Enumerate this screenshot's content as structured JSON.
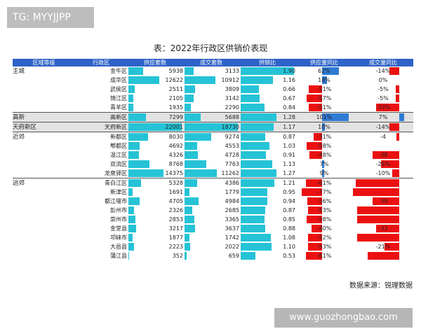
{
  "watermark_top": "TG: MYYJJPP",
  "watermark_bottom": "www.guozhongbao.com",
  "title": "表：2022年行政区供销价表现",
  "source": "数据来源：锐理数据",
  "headers": [
    "区域等级",
    "行政区",
    "供应套数",
    "成交套数",
    "供销比",
    "供应量同比",
    "成交量同比"
  ],
  "rows": [
    {
      "cat": "主城",
      "dist": "金牛区",
      "supply": 5938,
      "supply_text": "5938",
      "deal": 3133,
      "deal_text": "3133",
      "ratio": 1.9,
      "ratio_text": "1.90",
      "sy": 62,
      "sy_text": "62%",
      "dy": -14,
      "dy_text": "-14%"
    },
    {
      "cat": "",
      "dist": "成华区",
      "supply": 12622,
      "supply_text": "12622",
      "deal": 10912,
      "deal_text": "10912",
      "ratio": 1.16,
      "ratio_text": "1.16",
      "sy": 18,
      "sy_text": "18%",
      "dy": 0,
      "dy_text": "0%"
    },
    {
      "cat": "",
      "dist": "武侯区",
      "supply": 2511,
      "supply_text": "2511",
      "deal": 3809,
      "deal_text": "3809",
      "ratio": 0.66,
      "ratio_text": "0.66",
      "sy": -51,
      "sy_text": "-51%",
      "dy": -5,
      "dy_text": "-5%"
    },
    {
      "cat": "",
      "dist": "锦江区",
      "supply": 2105,
      "supply_text": "2105",
      "deal": 3142,
      "deal_text": "3142",
      "ratio": 0.67,
      "ratio_text": "0.67",
      "sy": -57,
      "sy_text": "-57%",
      "dy": -5,
      "dy_text": "-5%"
    },
    {
      "cat": "",
      "dist": "青羊区",
      "supply": 1935,
      "supply_text": "1935",
      "deal": 2290,
      "deal_text": "2290",
      "ratio": 0.84,
      "ratio_text": "0.84",
      "sy": -51,
      "sy_text": "-51%",
      "dy": -33,
      "dy_text": "-33%"
    },
    {
      "cat": "高新",
      "dist": "高新区",
      "supply": 7299,
      "supply_text": "7299",
      "deal": 5688,
      "deal_text": "5688",
      "ratio": 1.28,
      "ratio_text": "1.28",
      "sy": 101,
      "sy_text": "101%",
      "dy": 7,
      "dy_text": "7%",
      "group_start": true
    },
    {
      "cat": "天府新区",
      "dist": "天府新区",
      "supply": 22001,
      "supply_text": "22001",
      "deal": 18730,
      "deal_text": "18730",
      "ratio": 1.17,
      "ratio_text": "1.17",
      "sy": 10,
      "sy_text": "10%",
      "dy": -14,
      "dy_text": "-14%",
      "group_start": true
    },
    {
      "cat": "近郊",
      "dist": "新都区",
      "supply": 8030,
      "supply_text": "8030",
      "deal": 9274,
      "deal_text": "9274",
      "ratio": 0.87,
      "ratio_text": "0.87",
      "sy": -31,
      "sy_text": "-31%",
      "dy": -4,
      "dy_text": "-4",
      "group_start": true
    },
    {
      "cat": "",
      "dist": "郫都区",
      "supply": 4692,
      "supply_text": "4692",
      "deal": 4553,
      "deal_text": "4553",
      "ratio": 1.03,
      "ratio_text": "1.03",
      "sy": -58,
      "sy_text": "-58%",
      "dy": 0,
      "dy_text": ""
    },
    {
      "cat": "",
      "dist": "温江区",
      "supply": 4326,
      "supply_text": "4326",
      "deal": 4728,
      "deal_text": "4728",
      "ratio": 0.91,
      "ratio_text": "0.91",
      "sy": -48,
      "sy_text": "-48%",
      "dy": -38,
      "dy_text": "-38"
    },
    {
      "cat": "",
      "dist": "双流区",
      "supply": 8768,
      "supply_text": "8768",
      "deal": 7763,
      "deal_text": "7763",
      "ratio": 1.13,
      "ratio_text": "1.13",
      "sy": 7,
      "sy_text": "7%",
      "dy": -26,
      "dy_text": "-26%"
    },
    {
      "cat": "",
      "dist": "龙泉驿区",
      "supply": 14375,
      "supply_text": "14375",
      "deal": 11262,
      "deal_text": "11262",
      "ratio": 1.27,
      "ratio_text": "1.27",
      "sy": 9,
      "sy_text": "9%",
      "dy": -10,
      "dy_text": "-10%"
    },
    {
      "cat": "远郊",
      "dist": "青白江区",
      "supply": 5328,
      "supply_text": "5328",
      "deal": 4386,
      "deal_text": "4386",
      "ratio": 1.21,
      "ratio_text": "1.21",
      "sy": -61,
      "sy_text": "-61%",
      "dy": -62,
      "dy_text": "",
      "group_start": true
    },
    {
      "cat": "",
      "dist": "新津区",
      "supply": 1691,
      "supply_text": "1691",
      "deal": 1779,
      "deal_text": "1779",
      "ratio": 0.95,
      "ratio_text": "0.95",
      "sy": -77,
      "sy_text": "-77%",
      "dy": -70,
      "dy_text": ""
    },
    {
      "cat": "",
      "dist": "都江堰市",
      "supply": 4705,
      "supply_text": "4705",
      "deal": 4984,
      "deal_text": "4984",
      "ratio": 0.94,
      "ratio_text": "0.94",
      "sy": -56,
      "sy_text": "-56%",
      "dy": -38,
      "dy_text": "-38"
    },
    {
      "cat": "",
      "dist": "彭州市",
      "supply": 2326,
      "supply_text": "2326",
      "deal": 2685,
      "deal_text": "2685",
      "ratio": 0.87,
      "ratio_text": "0.87",
      "sy": -53,
      "sy_text": "-53%",
      "dy": -60,
      "dy_text": ""
    },
    {
      "cat": "",
      "dist": "崇州市",
      "supply": 2853,
      "supply_text": "2853",
      "deal": 3365,
      "deal_text": "3365",
      "ratio": 0.85,
      "ratio_text": "0.85",
      "sy": -58,
      "sy_text": "-58%",
      "dy": -60,
      "dy_text": ""
    },
    {
      "cat": "",
      "dist": "金堂县",
      "supply": 3217,
      "supply_text": "3217",
      "deal": 3637,
      "deal_text": "3637",
      "ratio": 0.88,
      "ratio_text": "0.88",
      "sy": -40,
      "sy_text": "-40%",
      "dy": -33,
      "dy_text": "-33"
    },
    {
      "cat": "",
      "dist": "邛崃市",
      "supply": 1877,
      "supply_text": "1877",
      "deal": 1742,
      "deal_text": "1742",
      "ratio": 1.08,
      "ratio_text": "1.08",
      "sy": -52,
      "sy_text": "-52%",
      "dy": -60,
      "dy_text": ""
    },
    {
      "cat": "",
      "dist": "大邑县",
      "supply": 2223,
      "supply_text": "2223",
      "deal": 2022,
      "deal_text": "2022",
      "ratio": 1.1,
      "ratio_text": "1.10",
      "sy": -53,
      "sy_text": "-53%",
      "dy": -21,
      "dy_text": "-21%"
    },
    {
      "cat": "",
      "dist": "蒲江县",
      "supply": 352,
      "supply_text": "352",
      "deal": 659,
      "deal_text": "659",
      "ratio": 0.53,
      "ratio_text": "0.53",
      "sy": -61,
      "sy_text": "-61%",
      "dy": -45,
      "dy_text": ""
    }
  ]
}
